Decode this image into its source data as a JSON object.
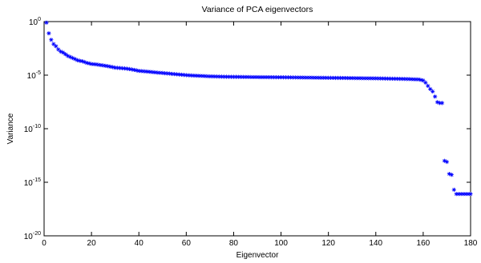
{
  "chart_data": {
    "type": "scatter",
    "title": "Variance of PCA eigenvectors",
    "xlabel": "Eigenvector",
    "ylabel": "Variance",
    "log_y": true,
    "marker": "*",
    "xlim": [
      0,
      180
    ],
    "xticks": [
      0,
      20,
      40,
      60,
      80,
      100,
      120,
      140,
      160,
      180
    ],
    "ylim": [
      1e-20,
      1
    ],
    "yticks": [
      {
        "value": 1e-20,
        "label": "10^-20"
      },
      {
        "value": 1e-15,
        "label": "10^-15"
      },
      {
        "value": 1e-10,
        "label": "10^-10"
      },
      {
        "value": 1e-05,
        "label": "10^-5"
      },
      {
        "value": 1,
        "label": "10^0"
      }
    ],
    "series": [
      {
        "color": "#0000ff",
        "x": [
          1,
          2,
          3,
          4,
          5,
          6,
          7,
          8,
          9,
          10,
          11,
          12,
          13,
          14,
          15,
          16,
          17,
          18,
          19,
          20,
          21,
          22,
          23,
          24,
          25,
          26,
          27,
          28,
          29,
          30,
          31,
          32,
          33,
          34,
          35,
          36,
          37,
          38,
          39,
          40,
          41,
          42,
          43,
          44,
          45,
          46,
          47,
          48,
          49,
          50,
          51,
          52,
          53,
          54,
          55,
          56,
          57,
          58,
          59,
          60,
          61,
          62,
          63,
          64,
          65,
          66,
          67,
          68,
          69,
          70,
          71,
          72,
          73,
          74,
          75,
          76,
          77,
          78,
          79,
          80,
          81,
          82,
          83,
          84,
          85,
          86,
          87,
          88,
          89,
          90,
          91,
          92,
          93,
          94,
          95,
          96,
          97,
          98,
          99,
          100,
          101,
          102,
          103,
          104,
          105,
          106,
          107,
          108,
          109,
          110,
          111,
          112,
          113,
          114,
          115,
          116,
          117,
          118,
          119,
          120,
          121,
          122,
          123,
          124,
          125,
          126,
          127,
          128,
          129,
          130,
          131,
          132,
          133,
          134,
          135,
          136,
          137,
          138,
          139,
          140,
          141,
          142,
          143,
          144,
          145,
          146,
          147,
          148,
          149,
          150,
          151,
          152,
          153,
          154,
          155,
          156,
          157,
          158,
          159,
          160,
          161,
          162,
          163,
          164,
          165,
          166,
          167,
          168,
          169,
          170,
          171,
          172,
          173,
          174,
          175,
          176,
          177,
          178,
          179,
          180
        ],
        "values": [
          0.8,
          0.08,
          0.02,
          0.008,
          0.005,
          0.0025,
          0.0016,
          0.0013,
          0.0009,
          0.00063,
          0.0005,
          0.0004,
          0.00032,
          0.00025,
          0.00022,
          0.0002,
          0.00017,
          0.00014,
          0.000126,
          0.00011,
          0.000105,
          0.0001,
          9.3e-05,
          8.6e-05,
          8e-05,
          7.4e-05,
          6.8e-05,
          6.2e-05,
          5.6e-05,
          5e-05,
          4.8e-05,
          4.6e-05,
          4.4e-05,
          4.2e-05,
          4e-05,
          3.7e-05,
          3.4e-05,
          3.1e-05,
          2.8e-05,
          2.5e-05,
          2.4e-05,
          2.3e-05,
          2.2e-05,
          2.1e-05,
          2e-05,
          1.9e-05,
          1.8e-05,
          1.7e-05,
          1.65e-05,
          1.6e-05,
          1.5e-05,
          1.45e-05,
          1.4e-05,
          1.3e-05,
          1.25e-05,
          1.2e-05,
          1.15e-05,
          1.1e-05,
          1.05e-05,
          1e-05,
          9.7e-06,
          9.4e-06,
          9.1e-06,
          8.9e-06,
          8.7e-06,
          8.5e-06,
          8.3e-06,
          8.1e-06,
          7.9e-06,
          7.7e-06,
          7.6e-06,
          7.5e-06,
          7.4e-06,
          7.3e-06,
          7.2e-06,
          7.1e-06,
          7.05e-06,
          7e-06,
          6.95e-06,
          6.9e-06,
          6.9e-06,
          6.85e-06,
          6.8e-06,
          6.75e-06,
          6.7e-06,
          6.7e-06,
          6.65e-06,
          6.6e-06,
          6.6e-06,
          6.55e-06,
          6.5e-06,
          6.5e-06,
          6.45e-06,
          6.45e-06,
          6.4e-06,
          6.4e-06,
          6.35e-06,
          6.35e-06,
          6.3e-06,
          6.3e-06,
          6.25e-06,
          6.2e-06,
          6.2e-06,
          6.15e-06,
          6.1e-06,
          6.1e-06,
          6.05e-06,
          6e-06,
          6e-06,
          5.95e-06,
          5.9e-06,
          5.9e-06,
          5.85e-06,
          5.8e-06,
          5.8e-06,
          5.75e-06,
          5.7e-06,
          5.7e-06,
          5.65e-06,
          5.6e-06,
          5.6e-06,
          5.55e-06,
          5.5e-06,
          5.5e-06,
          5.45e-06,
          5.4e-06,
          5.4e-06,
          5.35e-06,
          5.3e-06,
          5.3e-06,
          5.25e-06,
          5.2e-06,
          5.2e-06,
          5.15e-06,
          5.1e-06,
          5.1e-06,
          5.05e-06,
          5.05e-06,
          5e-06,
          5e-06,
          4.95e-06,
          4.9e-06,
          4.85e-06,
          4.8e-06,
          4.75e-06,
          4.7e-06,
          4.65e-06,
          4.6e-06,
          4.55e-06,
          4.5e-06,
          4.45e-06,
          4.4e-06,
          4.35e-06,
          4.3e-06,
          4.2e-06,
          4.1e-06,
          4.05e-06,
          4e-06,
          3.6e-06,
          3.2e-06,
          2e-06,
          1e-06,
          5e-07,
          3e-07,
          1e-07,
          3e-08,
          2.5e-08,
          2.5e-08,
          1e-13,
          8e-14,
          6e-15,
          5e-15,
          2e-16,
          8e-17,
          8e-17,
          8e-17,
          8e-17,
          8e-17,
          8e-17,
          8e-17
        ]
      }
    ]
  }
}
